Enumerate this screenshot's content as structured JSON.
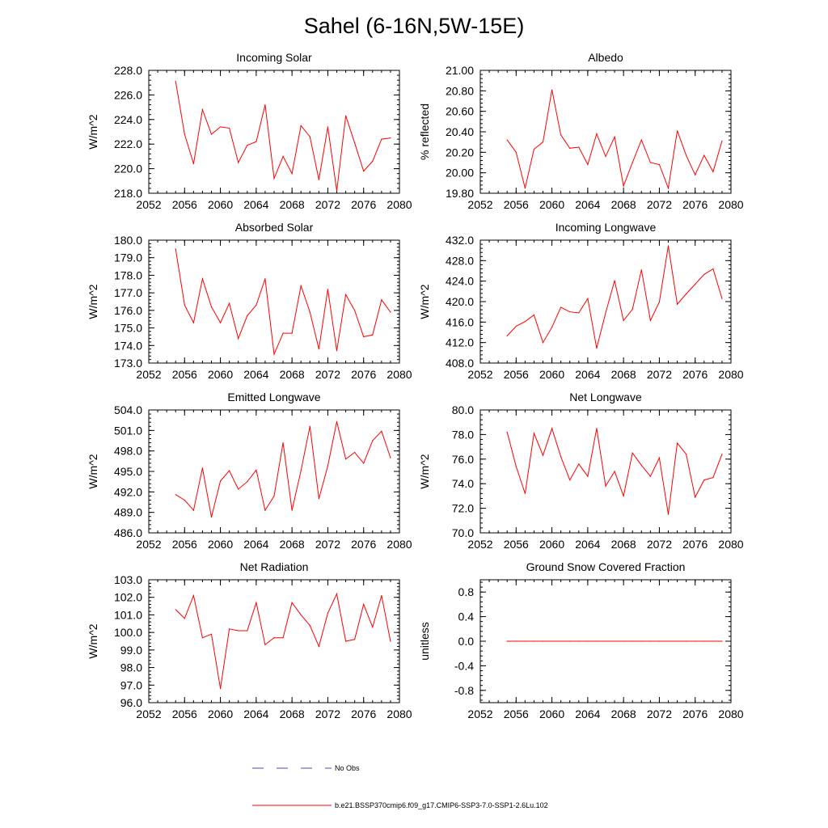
{
  "page_title": "Sahel (6-16N,5W-15E)",
  "colors": {
    "series": "#ff0000",
    "obs": "#4b4bb8",
    "axis": "#000000"
  },
  "legend": {
    "obs_label": "No Obs",
    "model_label": "b.e21.BSSP370cmip6.f09_g17.CMIP6-SSP3-7.0-SSP1-2.6Lu.102"
  },
  "chart_data": [
    {
      "type": "line",
      "title": "Incoming Solar",
      "xlabel": "",
      "ylabel": "W/m^2",
      "xlim": [
        2052,
        2080
      ],
      "ylim": [
        218,
        228
      ],
      "x_ticks": [
        2052,
        2056,
        2060,
        2064,
        2068,
        2072,
        2076,
        2080
      ],
      "x_tick_labels": [
        "2052",
        "2056",
        "2060",
        "2064",
        "2068",
        "2072",
        "2076",
        "2080"
      ],
      "y_ticks": [
        218,
        220,
        222,
        224,
        226,
        228
      ],
      "y_tick_labels": [
        "218.0",
        "220.0",
        "222.0",
        "224.0",
        "226.0",
        "228.0"
      ],
      "x": [
        2055,
        2056,
        2057,
        2058,
        2059,
        2060,
        2061,
        2062,
        2063,
        2064,
        2065,
        2066,
        2067,
        2068,
        2069,
        2070,
        2071,
        2072,
        2073,
        2074,
        2075,
        2076,
        2077,
        2078,
        2079
      ],
      "y": [
        227.1,
        222.8,
        220.4,
        224.8,
        222.8,
        223.4,
        223.3,
        220.5,
        221.9,
        222.2,
        225.2,
        219.2,
        221.0,
        219.6,
        223.5,
        222.6,
        219.1,
        223.4,
        218.2,
        224.3,
        222.1,
        219.8,
        220.6,
        222.4,
        222.5
      ]
    },
    {
      "type": "line",
      "title": "Albedo",
      "xlabel": "",
      "ylabel": "% reflected",
      "xlim": [
        2052,
        2080
      ],
      "ylim": [
        19.8,
        21.0
      ],
      "x_ticks": [
        2052,
        2056,
        2060,
        2064,
        2068,
        2072,
        2076,
        2080
      ],
      "x_tick_labels": [
        "2052",
        "2056",
        "2060",
        "2064",
        "2068",
        "2072",
        "2076",
        "2080"
      ],
      "y_ticks": [
        19.8,
        20.0,
        20.2,
        20.4,
        20.6,
        20.8,
        21.0
      ],
      "y_tick_labels": [
        "19.80",
        "20.00",
        "20.20",
        "20.40",
        "20.60",
        "20.80",
        "21.00"
      ],
      "x": [
        2055,
        2056,
        2057,
        2058,
        2059,
        2060,
        2061,
        2062,
        2063,
        2064,
        2065,
        2066,
        2067,
        2068,
        2069,
        2070,
        2071,
        2072,
        2073,
        2074,
        2075,
        2076,
        2077,
        2078,
        2079
      ],
      "y": [
        20.32,
        20.2,
        19.85,
        20.23,
        20.3,
        20.81,
        20.37,
        20.24,
        20.25,
        20.08,
        20.38,
        20.16,
        20.35,
        19.87,
        20.1,
        20.32,
        20.1,
        20.08,
        19.85,
        20.41,
        20.17,
        19.98,
        20.17,
        20.01,
        20.31
      ]
    },
    {
      "type": "line",
      "title": "Absorbed Solar",
      "xlabel": "",
      "ylabel": "W/m^2",
      "xlim": [
        2052,
        2080
      ],
      "ylim": [
        173,
        180
      ],
      "x_ticks": [
        2052,
        2056,
        2060,
        2064,
        2068,
        2072,
        2076,
        2080
      ],
      "x_tick_labels": [
        "2052",
        "2056",
        "2060",
        "2064",
        "2068",
        "2072",
        "2076",
        "2080"
      ],
      "y_ticks": [
        173,
        174,
        175,
        176,
        177,
        178,
        179,
        180
      ],
      "y_tick_labels": [
        "173.0",
        "174.0",
        "175.0",
        "176.0",
        "177.0",
        "178.0",
        "179.0",
        "180.0"
      ],
      "x": [
        2055,
        2056,
        2057,
        2058,
        2059,
        2060,
        2061,
        2062,
        2063,
        2064,
        2065,
        2066,
        2067,
        2068,
        2069,
        2070,
        2071,
        2072,
        2073,
        2074,
        2075,
        2076,
        2077,
        2078,
        2079
      ],
      "y": [
        179.5,
        176.3,
        175.3,
        177.8,
        176.2,
        175.3,
        176.4,
        174.4,
        175.7,
        176.3,
        177.8,
        173.5,
        174.7,
        174.7,
        177.4,
        175.9,
        173.8,
        177.2,
        173.7,
        176.9,
        176.0,
        174.5,
        174.6,
        176.6,
        175.9
      ]
    },
    {
      "type": "line",
      "title": "Incoming Longwave",
      "xlabel": "",
      "ylabel": "W/m^2",
      "xlim": [
        2052,
        2080
      ],
      "ylim": [
        408,
        432
      ],
      "x_ticks": [
        2052,
        2056,
        2060,
        2064,
        2068,
        2072,
        2076,
        2080
      ],
      "x_tick_labels": [
        "2052",
        "2056",
        "2060",
        "2064",
        "2068",
        "2072",
        "2076",
        "2080"
      ],
      "y_ticks": [
        408,
        412,
        416,
        420,
        424,
        428,
        432
      ],
      "y_tick_labels": [
        "408.0",
        "412.0",
        "416.0",
        "420.0",
        "424.0",
        "428.0",
        "432.0"
      ],
      "x": [
        2055,
        2056,
        2057,
        2058,
        2059,
        2060,
        2061,
        2062,
        2063,
        2064,
        2065,
        2066,
        2067,
        2068,
        2069,
        2070,
        2071,
        2072,
        2073,
        2074,
        2075,
        2076,
        2077,
        2078,
        2079
      ],
      "y": [
        413.3,
        415.2,
        416.1,
        417.4,
        412.0,
        415.0,
        418.9,
        418.0,
        417.8,
        420.6,
        410.9,
        417.8,
        424.1,
        416.3,
        418.5,
        426.2,
        416.3,
        419.9,
        430.9,
        419.5,
        421.5,
        423.4,
        425.3,
        426.4,
        420.6
      ]
    },
    {
      "type": "line",
      "title": "Emitted Longwave",
      "xlabel": "",
      "ylabel": "W/m^2",
      "xlim": [
        2052,
        2080
      ],
      "ylim": [
        486,
        504
      ],
      "x_ticks": [
        2052,
        2056,
        2060,
        2064,
        2068,
        2072,
        2076,
        2080
      ],
      "x_tick_labels": [
        "2052",
        "2056",
        "2060",
        "2064",
        "2068",
        "2072",
        "2076",
        "2080"
      ],
      "y_ticks": [
        486,
        489,
        492,
        495,
        498,
        501,
        504
      ],
      "y_tick_labels": [
        "486.0",
        "489.0",
        "492.0",
        "495.0",
        "498.0",
        "501.0",
        "504.0"
      ],
      "x": [
        2055,
        2056,
        2057,
        2058,
        2059,
        2060,
        2061,
        2062,
        2063,
        2064,
        2065,
        2066,
        2067,
        2068,
        2069,
        2070,
        2071,
        2072,
        2073,
        2074,
        2075,
        2076,
        2077,
        2078,
        2079
      ],
      "y": [
        491.6,
        490.8,
        489.3,
        495.5,
        488.3,
        493.6,
        495.1,
        492.4,
        493.5,
        495.2,
        489.3,
        491.4,
        499.2,
        489.3,
        495.1,
        501.6,
        491.0,
        495.8,
        502.3,
        496.8,
        497.8,
        496.2,
        499.5,
        500.9,
        497.0
      ]
    },
    {
      "type": "line",
      "title": "Net Longwave",
      "xlabel": "",
      "ylabel": "W/m^2",
      "xlim": [
        2052,
        2080
      ],
      "ylim": [
        70,
        80
      ],
      "x_ticks": [
        2052,
        2056,
        2060,
        2064,
        2068,
        2072,
        2076,
        2080
      ],
      "x_tick_labels": [
        "2052",
        "2056",
        "2060",
        "2064",
        "2068",
        "2072",
        "2076",
        "2080"
      ],
      "y_ticks": [
        70,
        72,
        74,
        76,
        78,
        80
      ],
      "y_tick_labels": [
        "70.0",
        "72.0",
        "74.0",
        "76.0",
        "78.0",
        "80.0"
      ],
      "x": [
        2055,
        2056,
        2057,
        2058,
        2059,
        2060,
        2061,
        2062,
        2063,
        2064,
        2065,
        2066,
        2067,
        2068,
        2069,
        2070,
        2071,
        2072,
        2073,
        2074,
        2075,
        2076,
        2077,
        2078,
        2079
      ],
      "y": [
        78.2,
        75.4,
        73.2,
        78.1,
        76.3,
        78.5,
        76.2,
        74.3,
        75.6,
        74.6,
        78.5,
        73.8,
        75.0,
        73.0,
        76.5,
        75.5,
        74.6,
        76.1,
        71.5,
        77.3,
        76.4,
        72.9,
        74.3,
        74.5,
        76.4
      ]
    },
    {
      "type": "line",
      "title": "Net Radiation",
      "xlabel": "",
      "ylabel": "W/m^2",
      "xlim": [
        2052,
        2080
      ],
      "ylim": [
        96,
        103
      ],
      "x_ticks": [
        2052,
        2056,
        2060,
        2064,
        2068,
        2072,
        2076,
        2080
      ],
      "x_tick_labels": [
        "2052",
        "2056",
        "2060",
        "2064",
        "2068",
        "2072",
        "2076",
        "2080"
      ],
      "y_ticks": [
        96,
        97,
        98,
        99,
        100,
        101,
        102,
        103
      ],
      "y_tick_labels": [
        "96.0",
        "97.0",
        "98.0",
        "99.0",
        "100.0",
        "101.0",
        "102.0",
        "103.0"
      ],
      "x": [
        2055,
        2056,
        2057,
        2058,
        2059,
        2060,
        2061,
        2062,
        2063,
        2064,
        2065,
        2066,
        2067,
        2068,
        2069,
        2070,
        2071,
        2072,
        2073,
        2074,
        2075,
        2076,
        2077,
        2078,
        2079
      ],
      "y": [
        101.3,
        100.8,
        102.1,
        99.7,
        99.9,
        96.8,
        100.2,
        100.1,
        100.1,
        101.7,
        99.3,
        99.7,
        99.7,
        101.7,
        101.0,
        100.4,
        99.2,
        101.1,
        102.2,
        99.5,
        99.6,
        101.6,
        100.3,
        102.1,
        99.5
      ]
    },
    {
      "type": "line",
      "title": "Ground Snow Covered Fraction",
      "xlabel": "",
      "ylabel": "unitless",
      "xlim": [
        2052,
        2080
      ],
      "ylim": [
        -1.0,
        1.0
      ],
      "x_ticks": [
        2052,
        2056,
        2060,
        2064,
        2068,
        2072,
        2076,
        2080
      ],
      "x_tick_labels": [
        "2052",
        "2056",
        "2060",
        "2064",
        "2068",
        "2072",
        "2076",
        "2080"
      ],
      "y_ticks": [
        -0.8,
        -0.4,
        0.0,
        0.4,
        0.8
      ],
      "y_tick_labels": [
        "-0.8",
        "-0.4",
        "0.0",
        "0.4",
        "0.8"
      ],
      "x": [
        2055,
        2056,
        2057,
        2058,
        2059,
        2060,
        2061,
        2062,
        2063,
        2064,
        2065,
        2066,
        2067,
        2068,
        2069,
        2070,
        2071,
        2072,
        2073,
        2074,
        2075,
        2076,
        2077,
        2078,
        2079
      ],
      "y": [
        0,
        0,
        0,
        0,
        0,
        0,
        0,
        0,
        0,
        0,
        0,
        0,
        0,
        0,
        0,
        0,
        0,
        0,
        0,
        0,
        0,
        0,
        0,
        0,
        0
      ]
    }
  ]
}
